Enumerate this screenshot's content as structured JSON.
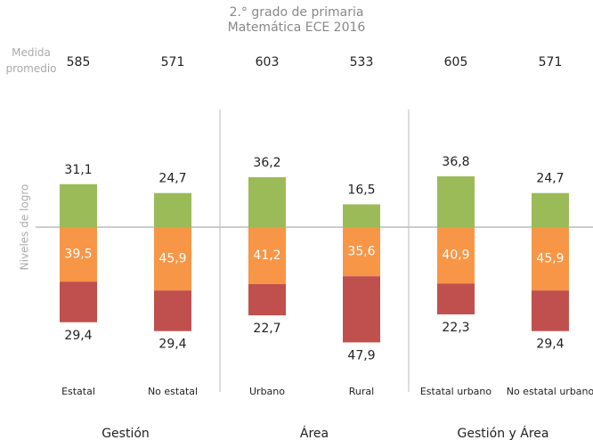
{
  "chart_data": {
    "type": "diverging_stacked_bar",
    "title": "2.° grado de primaria",
    "subtitle": "Matemática ECE 2016",
    "y_label": "Niveles de logro",
    "row_label": "Medida promedio",
    "row_values": [
      585,
      571,
      603,
      533,
      605,
      571
    ],
    "categories": [
      "Estatal",
      "No estatal",
      "Urbano",
      "Rural",
      "Estatal urbano",
      "No estatal urbano"
    ],
    "groups": [
      {
        "label": "Gestión",
        "size": 2
      },
      {
        "label": "Área",
        "size": 2
      },
      {
        "label": "Gestión y Área",
        "size": 2
      }
    ],
    "series": [
      {
        "color": "#9bbb59",
        "direction": "up",
        "values": [
          31.1,
          24.7,
          36.2,
          16.5,
          36.8,
          24.7
        ],
        "value_labels": [
          "31,1",
          "24,7",
          "36,2",
          "16,5",
          "36,8",
          "24,7"
        ]
      },
      {
        "color": "#f79646",
        "direction": "down",
        "values": [
          39.5,
          45.9,
          41.2,
          35.6,
          40.9,
          45.9
        ],
        "value_labels": [
          "39,5",
          "45,9",
          "41,2",
          "35,6",
          "40,9",
          "45,9"
        ]
      },
      {
        "color": "#c0504d",
        "direction": "down",
        "values": [
          29.4,
          29.4,
          22.7,
          47.9,
          22.3,
          29.4
        ],
        "value_labels": [
          "29,4",
          "29,4",
          "22,7",
          "47,9",
          "22,3",
          "29,4"
        ]
      }
    ]
  }
}
